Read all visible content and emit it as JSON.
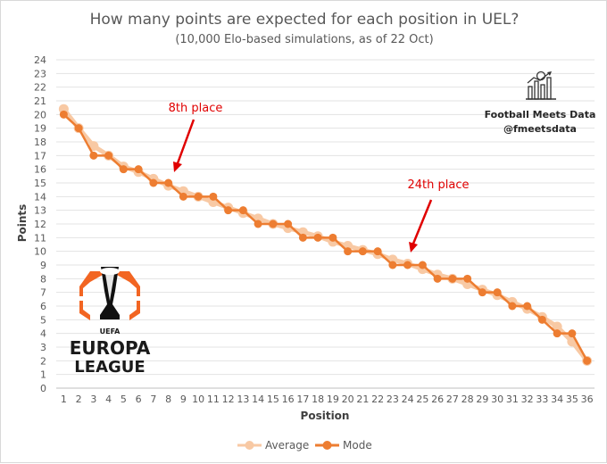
{
  "chart_data": {
    "type": "line",
    "title": "How many points are expected for each position in UEL?",
    "subtitle": "(10,000 Elo-based simulations, as of 22 Oct)",
    "xlabel": "Position",
    "ylabel": "Points",
    "xlim": [
      1,
      36
    ],
    "ylim": [
      0,
      24
    ],
    "grid": true,
    "legend_position": "bottom",
    "x": [
      1,
      2,
      3,
      4,
      5,
      6,
      7,
      8,
      9,
      10,
      11,
      12,
      13,
      14,
      15,
      16,
      17,
      18,
      19,
      20,
      21,
      22,
      23,
      24,
      25,
      26,
      27,
      28,
      29,
      30,
      31,
      32,
      33,
      34,
      35,
      36
    ],
    "series": [
      {
        "name": "Average",
        "color": "#f8c9a4",
        "values": [
          20.4,
          19.0,
          17.7,
          17.0,
          16.2,
          15.8,
          15.3,
          14.8,
          14.4,
          14.0,
          13.6,
          13.2,
          12.8,
          12.4,
          12.0,
          11.7,
          11.4,
          11.1,
          10.7,
          10.4,
          10.1,
          9.8,
          9.4,
          9.1,
          8.7,
          8.3,
          8.0,
          7.6,
          7.2,
          6.8,
          6.3,
          5.8,
          5.2,
          4.5,
          3.4,
          2.0
        ]
      },
      {
        "name": "Mode",
        "color": "#ed7d31",
        "values": [
          20,
          19,
          17,
          17,
          16,
          16,
          15,
          15,
          14,
          14,
          14,
          13,
          13,
          12,
          12,
          12,
          11,
          11,
          11,
          10,
          10,
          10,
          9,
          9,
          9,
          8,
          8,
          8,
          7,
          7,
          6,
          6,
          5,
          4,
          4,
          2
        ]
      }
    ],
    "annotations": [
      {
        "text": "8th place",
        "x": 8,
        "y": 15,
        "color": "#e00000"
      },
      {
        "text": "24th place",
        "x": 24,
        "y": 9,
        "color": "#e00000"
      }
    ]
  },
  "branding": {
    "line1": "Football Meets Data",
    "line2": "@fmeetsdata",
    "icon": "football-chart-icon"
  },
  "logo": {
    "uefa": "UEFA",
    "line1": "EUROPA",
    "line2": "LEAGUE",
    "icon": "europa-league-trophy-icon",
    "color": "#f26522"
  }
}
